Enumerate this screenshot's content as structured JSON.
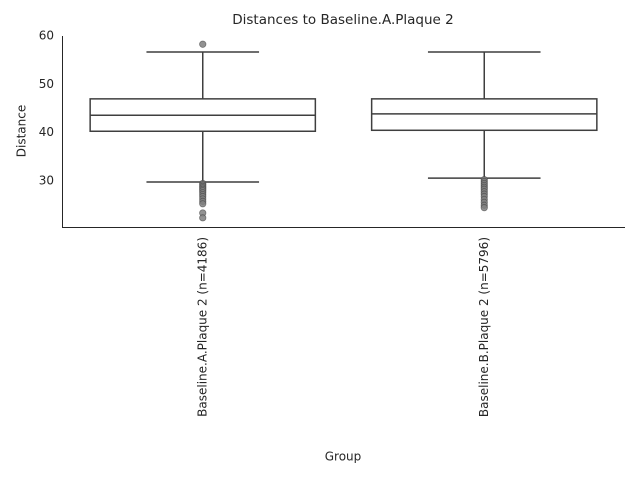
{
  "chart_data": {
    "type": "box",
    "title": "Distances to Baseline.A.Plaque 2",
    "x_label": "Group",
    "y_label": "Distance",
    "categories": [
      "Baseline.A.Plaque 2 (n=4186)",
      "Baseline.B.Plaque 2 (n=5796)"
    ],
    "boxes": [
      {
        "whisker_low": 29.8,
        "q1": 40.3,
        "median": 43.6,
        "q3": 47.0,
        "whisker_high": 56.7,
        "outliers": [
          58.3,
          29.5,
          29.2,
          28.9,
          28.6,
          28.3,
          28.0,
          27.6,
          27.2,
          26.8,
          26.3,
          25.8,
          25.3,
          23.4,
          22.4
        ]
      },
      {
        "whisker_low": 30.6,
        "q1": 40.5,
        "median": 43.9,
        "q3": 47.0,
        "whisker_high": 56.7,
        "outliers": [
          30.3,
          29.9,
          29.5,
          29.1,
          28.7,
          28.3,
          27.8,
          27.3,
          26.8,
          26.2,
          25.6,
          25.0,
          24.5
        ]
      }
    ],
    "ylim": [
      20.5,
      60
    ],
    "yticks": [
      30,
      40,
      50,
      60
    ],
    "color": "#ffffff",
    "edge_color": "#3f3f3f",
    "outlier_color": "#7f7f7f"
  }
}
